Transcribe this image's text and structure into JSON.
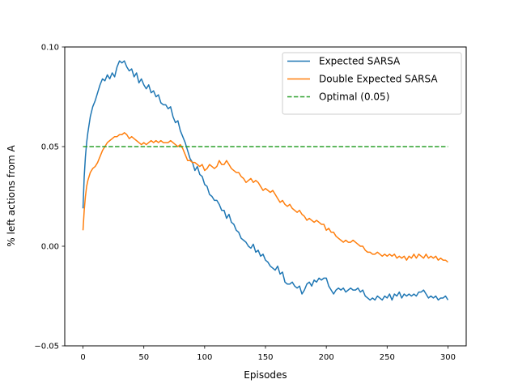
{
  "chart_data": {
    "type": "line",
    "title": "",
    "xlabel": "Episodes",
    "ylabel": "% left actions from A",
    "xlim": [
      -15,
      315
    ],
    "ylim": [
      -0.05,
      0.1
    ],
    "xticks": [
      0,
      50,
      100,
      150,
      200,
      250,
      300
    ],
    "xtick_labels": [
      "0",
      "50",
      "100",
      "150",
      "200",
      "250",
      "300"
    ],
    "yticks": [
      -0.05,
      0.0,
      0.05,
      0.1
    ],
    "ytick_labels": [
      "−0.05",
      "0.00",
      "0.05",
      "0.10"
    ],
    "grid": false,
    "legend_position": "upper right",
    "series": [
      {
        "name": "Expected SARSA",
        "color": "#1f77b4",
        "style": "solid",
        "x": [
          0,
          1,
          2,
          3,
          4,
          5,
          6,
          8,
          10,
          12,
          14,
          16,
          18,
          20,
          22,
          24,
          26,
          28,
          30,
          32,
          34,
          36,
          38,
          40,
          42,
          44,
          46,
          48,
          50,
          52,
          54,
          56,
          58,
          60,
          62,
          64,
          66,
          68,
          70,
          72,
          74,
          76,
          78,
          80,
          82,
          84,
          86,
          88,
          90,
          92,
          94,
          96,
          98,
          100,
          102,
          104,
          106,
          108,
          110,
          112,
          114,
          116,
          118,
          120,
          122,
          124,
          126,
          128,
          130,
          132,
          134,
          136,
          138,
          140,
          142,
          144,
          146,
          148,
          150,
          152,
          154,
          156,
          158,
          160,
          162,
          164,
          166,
          168,
          170,
          172,
          174,
          176,
          178,
          180,
          182,
          184,
          186,
          188,
          190,
          192,
          194,
          196,
          198,
          200,
          202,
          204,
          206,
          208,
          210,
          212,
          214,
          216,
          218,
          220,
          222,
          224,
          226,
          228,
          230,
          232,
          234,
          236,
          238,
          240,
          242,
          244,
          246,
          248,
          250,
          252,
          254,
          256,
          258,
          260,
          262,
          264,
          266,
          268,
          270,
          272,
          274,
          276,
          278,
          280,
          282,
          284,
          286,
          288,
          290,
          292,
          294,
          296,
          298,
          300
        ],
        "y": [
          0.019,
          0.035,
          0.045,
          0.052,
          0.057,
          0.061,
          0.065,
          0.07,
          0.073,
          0.077,
          0.081,
          0.084,
          0.083,
          0.086,
          0.084,
          0.087,
          0.085,
          0.09,
          0.093,
          0.092,
          0.093,
          0.09,
          0.088,
          0.089,
          0.085,
          0.087,
          0.082,
          0.084,
          0.081,
          0.079,
          0.081,
          0.077,
          0.078,
          0.075,
          0.076,
          0.072,
          0.071,
          0.071,
          0.069,
          0.07,
          0.065,
          0.062,
          0.063,
          0.058,
          0.055,
          0.052,
          0.048,
          0.044,
          0.042,
          0.038,
          0.04,
          0.036,
          0.035,
          0.031,
          0.03,
          0.026,
          0.025,
          0.023,
          0.023,
          0.021,
          0.018,
          0.018,
          0.014,
          0.016,
          0.012,
          0.011,
          0.008,
          0.007,
          0.004,
          0.003,
          0.002,
          0.0,
          -0.001,
          0.001,
          -0.003,
          -0.002,
          -0.005,
          -0.004,
          -0.007,
          -0.008,
          -0.01,
          -0.011,
          -0.012,
          -0.01,
          -0.014,
          -0.013,
          -0.018,
          -0.019,
          -0.019,
          -0.018,
          -0.02,
          -0.021,
          -0.02,
          -0.024,
          -0.022,
          -0.019,
          -0.018,
          -0.02,
          -0.017,
          -0.018,
          -0.016,
          -0.017,
          -0.016,
          -0.016,
          -0.02,
          -0.022,
          -0.024,
          -0.022,
          -0.021,
          -0.022,
          -0.021,
          -0.023,
          -0.022,
          -0.021,
          -0.022,
          -0.022,
          -0.021,
          -0.023,
          -0.022,
          -0.025,
          -0.026,
          -0.027,
          -0.026,
          -0.027,
          -0.025,
          -0.026,
          -0.027,
          -0.025,
          -0.026,
          -0.024,
          -0.027,
          -0.024,
          -0.025,
          -0.023,
          -0.026,
          -0.024,
          -0.025,
          -0.024,
          -0.025,
          -0.024,
          -0.025,
          -0.023,
          -0.023,
          -0.022,
          -0.024,
          -0.026,
          -0.025,
          -0.026,
          -0.025,
          -0.027,
          -0.026,
          -0.026,
          -0.025,
          -0.027
        ]
      },
      {
        "name": "Double Expected SARSA",
        "color": "#ff7f0e",
        "style": "solid",
        "x": [
          0,
          1,
          2,
          3,
          4,
          5,
          6,
          8,
          10,
          12,
          14,
          16,
          18,
          20,
          22,
          24,
          26,
          28,
          30,
          32,
          34,
          36,
          38,
          40,
          42,
          44,
          46,
          48,
          50,
          52,
          54,
          56,
          58,
          60,
          62,
          64,
          66,
          68,
          70,
          72,
          74,
          76,
          78,
          80,
          82,
          84,
          86,
          88,
          90,
          92,
          94,
          96,
          98,
          100,
          102,
          104,
          106,
          108,
          110,
          112,
          114,
          116,
          118,
          120,
          122,
          124,
          126,
          128,
          130,
          132,
          134,
          136,
          138,
          140,
          142,
          144,
          146,
          148,
          150,
          152,
          154,
          156,
          158,
          160,
          162,
          164,
          166,
          168,
          170,
          172,
          174,
          176,
          178,
          180,
          182,
          184,
          186,
          188,
          190,
          192,
          194,
          196,
          198,
          200,
          202,
          204,
          206,
          208,
          210,
          212,
          214,
          216,
          218,
          220,
          222,
          224,
          226,
          228,
          230,
          232,
          234,
          236,
          238,
          240,
          242,
          244,
          246,
          248,
          250,
          252,
          254,
          256,
          258,
          260,
          262,
          264,
          266,
          268,
          270,
          272,
          274,
          276,
          278,
          280,
          282,
          284,
          286,
          288,
          290,
          292,
          294,
          296,
          298,
          300
        ],
        "y": [
          0.008,
          0.018,
          0.025,
          0.03,
          0.033,
          0.035,
          0.037,
          0.039,
          0.04,
          0.042,
          0.045,
          0.048,
          0.05,
          0.052,
          0.053,
          0.054,
          0.055,
          0.055,
          0.056,
          0.056,
          0.057,
          0.056,
          0.054,
          0.055,
          0.054,
          0.053,
          0.052,
          0.051,
          0.052,
          0.051,
          0.052,
          0.053,
          0.052,
          0.053,
          0.052,
          0.053,
          0.052,
          0.052,
          0.052,
          0.053,
          0.052,
          0.051,
          0.05,
          0.051,
          0.049,
          0.046,
          0.043,
          0.043,
          0.042,
          0.042,
          0.041,
          0.04,
          0.041,
          0.038,
          0.039,
          0.041,
          0.04,
          0.039,
          0.04,
          0.043,
          0.041,
          0.041,
          0.043,
          0.041,
          0.039,
          0.038,
          0.037,
          0.037,
          0.035,
          0.034,
          0.032,
          0.033,
          0.034,
          0.032,
          0.033,
          0.032,
          0.03,
          0.028,
          0.029,
          0.028,
          0.027,
          0.028,
          0.026,
          0.024,
          0.022,
          0.023,
          0.021,
          0.02,
          0.021,
          0.019,
          0.018,
          0.017,
          0.018,
          0.016,
          0.015,
          0.013,
          0.014,
          0.013,
          0.012,
          0.013,
          0.012,
          0.011,
          0.011,
          0.008,
          0.009,
          0.007,
          0.007,
          0.005,
          0.004,
          0.003,
          0.002,
          0.003,
          0.002,
          0.002,
          0.003,
          0.002,
          0.001,
          0.0,
          0.0,
          -0.002,
          -0.003,
          -0.003,
          -0.004,
          -0.004,
          -0.003,
          -0.004,
          -0.005,
          -0.004,
          -0.005,
          -0.004,
          -0.005,
          -0.004,
          -0.006,
          -0.005,
          -0.006,
          -0.005,
          -0.007,
          -0.005,
          -0.006,
          -0.004,
          -0.006,
          -0.004,
          -0.005,
          -0.006,
          -0.004,
          -0.006,
          -0.005,
          -0.006,
          -0.005,
          -0.007,
          -0.006,
          -0.007,
          -0.007,
          -0.008
        ]
      },
      {
        "name": "Optimal (0.05)",
        "color": "#2ca02c",
        "style": "dashed",
        "x": [
          0,
          300
        ],
        "y": [
          0.05,
          0.05
        ]
      }
    ]
  }
}
